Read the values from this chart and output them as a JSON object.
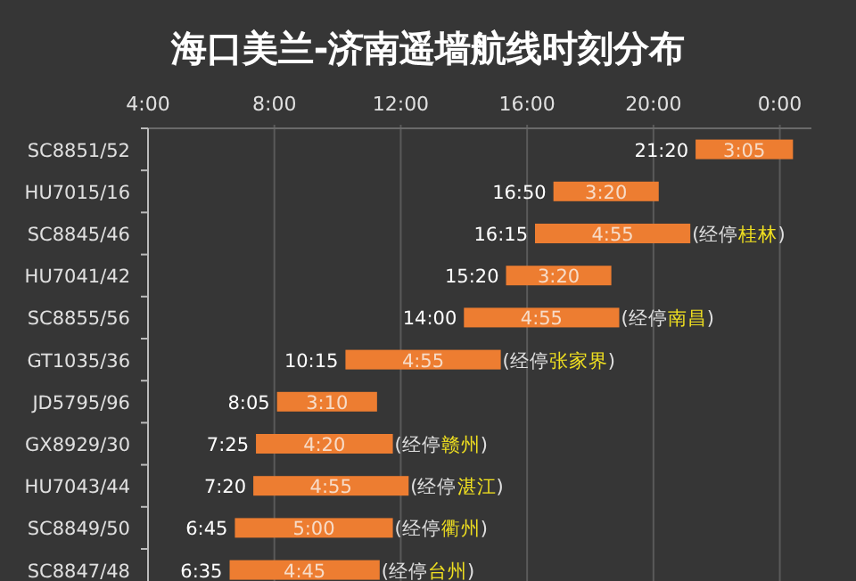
{
  "chart_data": {
    "type": "bar",
    "orientation": "horizontal",
    "title": "海口美兰-济南遥墙航线时刻分布",
    "categories": [
      "SC8851/52",
      "HU7015/16",
      "SC8845/46",
      "HU7041/42",
      "SC8855/56",
      "GT1035/36",
      "JD5795/96",
      "GX8929/30",
      "HU7043/44",
      "SC8849/50",
      "SC8847/48"
    ],
    "base": [
      21.3333,
      16.8333,
      16.25,
      15.3333,
      14,
      10.25,
      8.0833,
      7.4167,
      7.3333,
      6.75,
      6.5833
    ],
    "values": [
      3.0833,
      3.3333,
      4.9167,
      3.3333,
      4.9167,
      4.9167,
      3.1667,
      4.3333,
      4.9167,
      5,
      4.75
    ],
    "value_labels": [
      "3:05",
      "3:20",
      "4:55",
      "3:20",
      "4:55",
      "4:55",
      "3:10",
      "4:20",
      "4:55",
      "5:00",
      "4:45"
    ],
    "color": "#ed7d31",
    "xlim": [
      4,
      25
    ],
    "xticks": [
      {
        "value": 4,
        "label": "4:00"
      },
      {
        "value": 8,
        "label": "8:00"
      },
      {
        "value": 12,
        "label": "12:00"
      },
      {
        "value": 16,
        "label": "16:00"
      },
      {
        "value": 20,
        "label": "20:00"
      },
      {
        "value": 24,
        "label": "0:00"
      }
    ],
    "grid": "x",
    "annotations": [
      {
        "text": "21:20",
        "x": 21.3333,
        "y": "SC8851/52"
      },
      {
        "text": "16:50",
        "x": 16.8333,
        "y": "HU7015/16"
      },
      {
        "text": "16:15",
        "x": 16.25,
        "y": "SC8845/46"
      },
      {
        "text": "(经停桂林)",
        "x": 21.1667,
        "y": "SC8845/46"
      },
      {
        "text": "15:20",
        "x": 15.3333,
        "y": "HU7041/42"
      },
      {
        "text": "14:00",
        "x": 14,
        "y": "SC8855/56"
      },
      {
        "text": "(经停南昌)",
        "x": 18.9167,
        "y": "SC8855/56"
      },
      {
        "text": "10:15",
        "x": 10.25,
        "y": "GT1035/36"
      },
      {
        "text": "(经停张家界)",
        "x": 15.1667,
        "y": "GT1035/36"
      },
      {
        "text": "8:05",
        "x": 8.0833,
        "y": "JD5795/96"
      },
      {
        "text": "7:25",
        "x": 7.4167,
        "y": "GX8929/30"
      },
      {
        "text": "(经停赣州)",
        "x": 11.75,
        "y": "GX8929/30"
      },
      {
        "text": "7:20",
        "x": 7.3333,
        "y": "HU7043/44"
      },
      {
        "text": "(经停湛江)",
        "x": 12.25,
        "y": "HU7043/44"
      },
      {
        "text": "6:45",
        "x": 6.75,
        "y": "SC8849/50"
      },
      {
        "text": "(经停衢州)",
        "x": 11.75,
        "y": "SC8849/50"
      },
      {
        "text": "6:35",
        "x": 6.5833,
        "y": "SC8847/48"
      },
      {
        "text": "(经停台州)",
        "x": 11.3333,
        "y": "SC8847/48"
      }
    ]
  }
}
